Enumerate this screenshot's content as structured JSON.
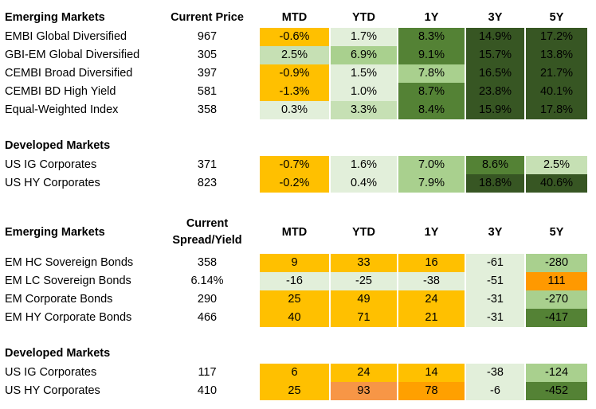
{
  "colors": {
    "orange_light": "#ffc000",
    "orange_dark": "#ffa000",
    "orange_deep": "#f79646",
    "green_pale": "#e2efda",
    "green_light": "#a9d08e",
    "green_mid": "#548235",
    "green_dark": "#375623"
  },
  "price_table": {
    "headers": {
      "group": "Emerging Markets",
      "base": "Current Price",
      "cols": [
        "MTD",
        "YTD",
        "1Y",
        "3Y",
        "5Y"
      ]
    },
    "em_rows": [
      {
        "name": "EMBI Global Diversified",
        "base": "967",
        "vals": [
          "-0.6%",
          "1.7%",
          "8.3%",
          "14.9%",
          "17.2%"
        ]
      },
      {
        "name": "GBI-EM Global Diversified",
        "base": "305",
        "vals": [
          "2.5%",
          "6.9%",
          "9.1%",
          "15.7%",
          "13.8%"
        ]
      },
      {
        "name": "CEMBI Broad Diversified",
        "base": "397",
        "vals": [
          "-0.9%",
          "1.5%",
          "7.8%",
          "16.5%",
          "21.7%"
        ]
      },
      {
        "name": "CEMBI BD High Yield",
        "base": "581",
        "vals": [
          "-1.3%",
          "1.0%",
          "8.7%",
          "23.8%",
          "40.1%"
        ]
      },
      {
        "name": "Equal-Weighted Index",
        "base": "358",
        "vals": [
          "0.3%",
          "3.3%",
          "8.4%",
          "15.9%",
          "17.8%"
        ]
      }
    ],
    "dm_label": "Developed Markets",
    "dm_rows": [
      {
        "name": "US IG Corporates",
        "base": "371",
        "vals": [
          "-0.7%",
          "1.6%",
          "7.0%",
          "8.6%",
          "2.5%"
        ]
      },
      {
        "name": "US HY Corporates",
        "base": "823",
        "vals": [
          "-0.2%",
          "0.4%",
          "7.9%",
          "18.8%",
          "40.6%"
        ]
      }
    ]
  },
  "spread_table": {
    "headers": {
      "group": "Emerging Markets",
      "base_line1": "Current",
      "base_line2": "Spread/Yield",
      "cols": [
        "MTD",
        "YTD",
        "1Y",
        "3Y",
        "5Y"
      ]
    },
    "em_rows": [
      {
        "name": "EM HC Sovereign Bonds",
        "base": "358",
        "vals": [
          "9",
          "33",
          "16",
          "-61",
          "-280"
        ]
      },
      {
        "name": "EM LC Sovereign Bonds",
        "base": "6.14%",
        "vals": [
          "-16",
          "-25",
          "-38",
          "-51",
          "111"
        ]
      },
      {
        "name": "EM Corporate Bonds",
        "base": "290",
        "vals": [
          "25",
          "49",
          "24",
          "-31",
          "-270"
        ]
      },
      {
        "name": "EM HY Corporate Bonds",
        "base": "466",
        "vals": [
          "40",
          "71",
          "21",
          "-31",
          "-417"
        ]
      }
    ],
    "dm_label": "Developed Markets",
    "dm_rows": [
      {
        "name": "US IG Corporates",
        "base": "117",
        "vals": [
          "6",
          "24",
          "14",
          "-38",
          "-124"
        ]
      },
      {
        "name": "US HY Corporates",
        "base": "410",
        "vals": [
          "25",
          "93",
          "78",
          "-6",
          "-452"
        ]
      }
    ]
  }
}
